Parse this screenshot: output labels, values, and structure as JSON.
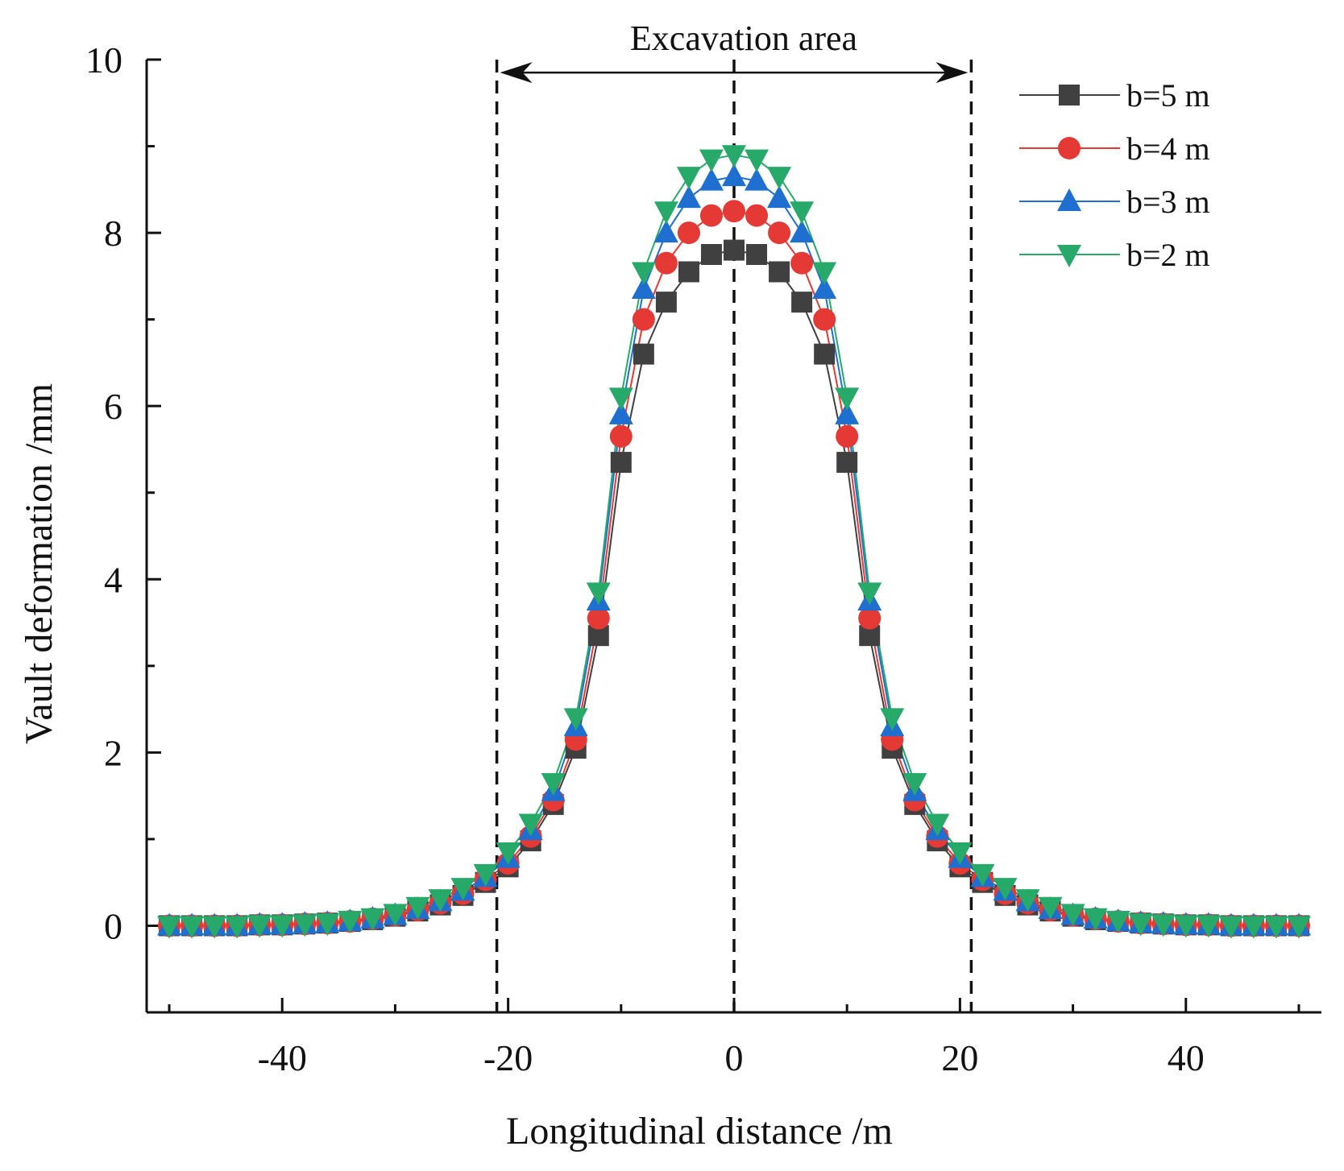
{
  "chart_data": {
    "type": "line",
    "title": "",
    "xlabel": "Longitudinal distance /m",
    "ylabel": "Vault  deformation /mm",
    "xlim": [
      -52,
      52
    ],
    "ylim": [
      -1,
      10
    ],
    "x_ticks": [
      -40,
      -20,
      0,
      20,
      40
    ],
    "y_ticks": [
      0,
      2,
      4,
      6,
      8,
      10
    ],
    "x_tick_labels": [
      "-40",
      "-20",
      "0",
      "20",
      "40"
    ],
    "y_tick_labels": [
      "0",
      "2",
      "4",
      "6",
      "8",
      "10"
    ],
    "x": [
      -50,
      -48,
      -46,
      -44,
      -42,
      -40,
      -38,
      -36,
      -34,
      -32,
      -30,
      -28,
      -26,
      -24,
      -22,
      -20,
      -18,
      -16,
      -14,
      -12,
      -10,
      -8,
      -6,
      -4,
      -2,
      0,
      2,
      4,
      6,
      8,
      10,
      12,
      14,
      16,
      18,
      20,
      22,
      24,
      26,
      28,
      30,
      32,
      34,
      36,
      38,
      40,
      42,
      44,
      46,
      48,
      50
    ],
    "series": [
      {
        "name": "b=5 m",
        "color": "#404040",
        "marker": "square",
        "values": [
          0.0,
          0.0,
          0.0,
          0.0,
          0.01,
          0.01,
          0.02,
          0.03,
          0.05,
          0.07,
          0.11,
          0.17,
          0.24,
          0.35,
          0.5,
          0.68,
          0.98,
          1.4,
          2.05,
          3.35,
          5.35,
          6.6,
          7.2,
          7.55,
          7.75,
          7.8,
          7.75,
          7.55,
          7.2,
          6.6,
          5.35,
          3.35,
          2.05,
          1.4,
          0.98,
          0.68,
          0.5,
          0.35,
          0.24,
          0.17,
          0.11,
          0.07,
          0.05,
          0.03,
          0.02,
          0.01,
          0.01,
          0.0,
          0.0,
          0.0,
          0.0
        ]
      },
      {
        "name": "b=4 m",
        "color": "#e53935",
        "marker": "circle",
        "values": [
          0.0,
          0.0,
          0.0,
          0.0,
          0.01,
          0.01,
          0.02,
          0.03,
          0.05,
          0.08,
          0.12,
          0.18,
          0.26,
          0.37,
          0.53,
          0.72,
          1.03,
          1.45,
          2.15,
          3.55,
          5.65,
          7.0,
          7.65,
          8.0,
          8.2,
          8.25,
          8.2,
          8.0,
          7.65,
          7.0,
          5.65,
          3.55,
          2.15,
          1.45,
          1.03,
          0.72,
          0.53,
          0.37,
          0.26,
          0.18,
          0.12,
          0.08,
          0.05,
          0.03,
          0.02,
          0.01,
          0.01,
          0.0,
          0.0,
          0.0,
          0.0
        ]
      },
      {
        "name": "b=3 m",
        "color": "#1e6fd0",
        "marker": "triangle-up",
        "values": [
          0.0,
          0.0,
          0.0,
          0.0,
          0.01,
          0.01,
          0.02,
          0.03,
          0.05,
          0.08,
          0.12,
          0.19,
          0.28,
          0.4,
          0.56,
          0.78,
          1.1,
          1.55,
          2.3,
          3.75,
          5.9,
          7.35,
          8.0,
          8.4,
          8.6,
          8.65,
          8.6,
          8.4,
          8.0,
          7.35,
          5.9,
          3.75,
          2.3,
          1.55,
          1.1,
          0.78,
          0.56,
          0.4,
          0.28,
          0.19,
          0.12,
          0.08,
          0.05,
          0.03,
          0.02,
          0.01,
          0.01,
          0.0,
          0.0,
          0.0,
          0.0
        ]
      },
      {
        "name": "b=2 m",
        "color": "#27a96a",
        "marker": "triangle-down",
        "values": [
          0.0,
          0.0,
          0.0,
          0.0,
          0.01,
          0.01,
          0.02,
          0.03,
          0.06,
          0.09,
          0.14,
          0.22,
          0.31,
          0.44,
          0.6,
          0.85,
          1.18,
          1.65,
          2.4,
          3.85,
          6.1,
          7.55,
          8.25,
          8.65,
          8.85,
          8.9,
          8.85,
          8.65,
          8.25,
          7.55,
          6.1,
          3.85,
          2.4,
          1.65,
          1.18,
          0.85,
          0.6,
          0.44,
          0.31,
          0.22,
          0.14,
          0.09,
          0.06,
          0.03,
          0.02,
          0.01,
          0.01,
          0.0,
          0.0,
          0.0,
          0.0
        ]
      }
    ],
    "annotations": {
      "region_label": "Excavation area",
      "region_x": [
        -21,
        21
      ],
      "center_line_x": 0
    },
    "legend_position": "top-right",
    "grid": false
  }
}
